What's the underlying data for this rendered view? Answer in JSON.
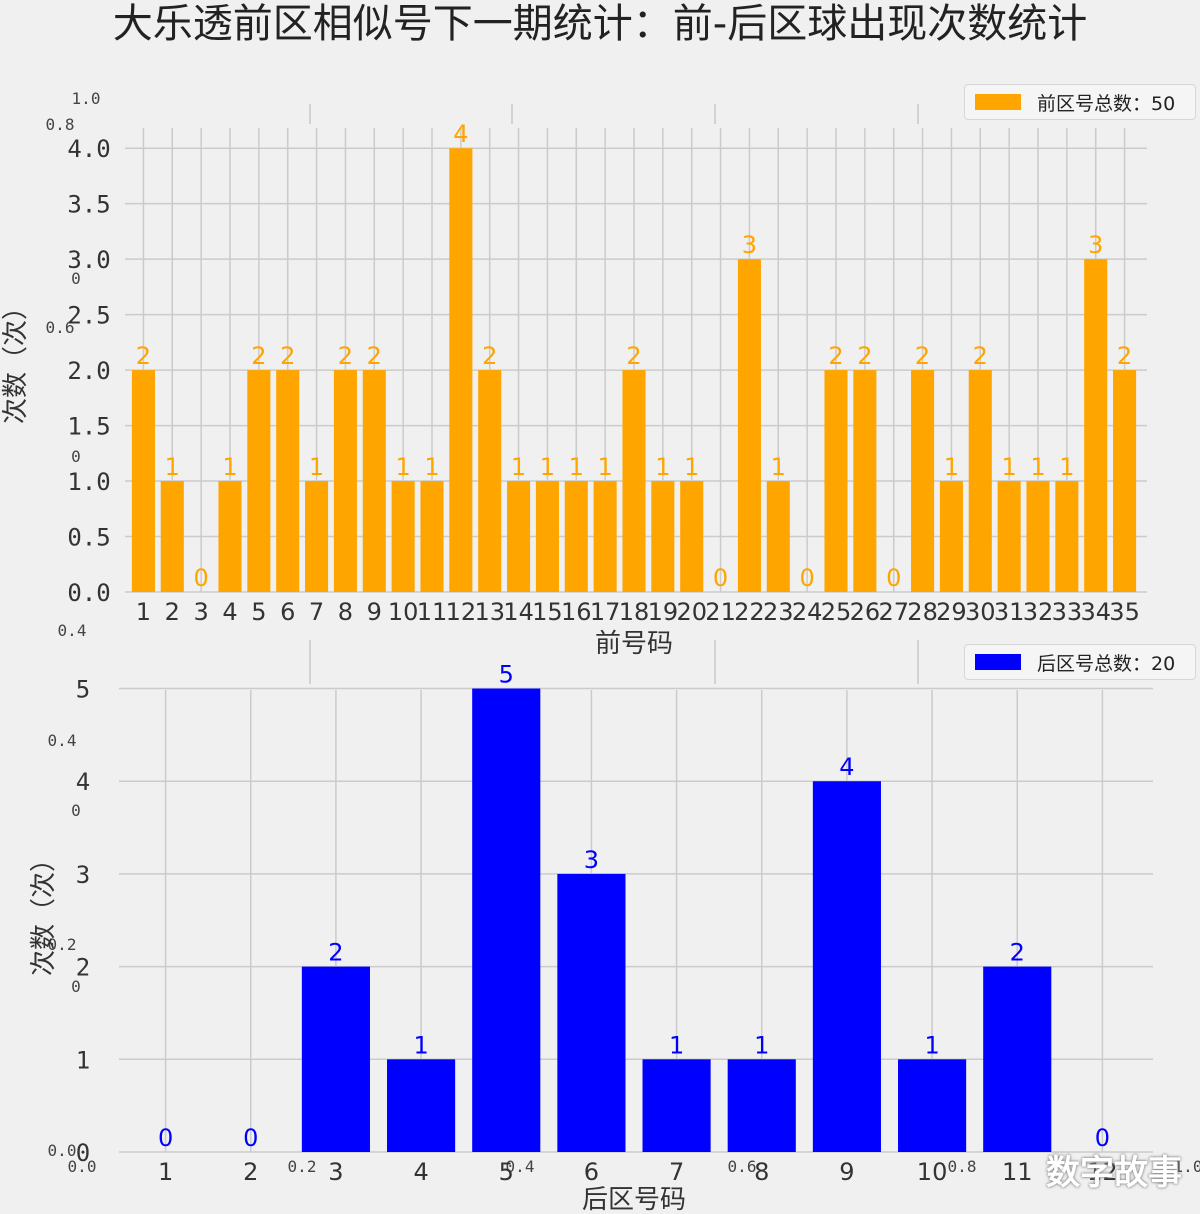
{
  "title": "大乐透前区相似号下一期统计：前-后区球出现次数统计",
  "watermark": "数字故事",
  "ghost_axis": {
    "x_ticks": [
      "0.0",
      "0.2",
      "0.4",
      "0.6",
      "0.8",
      "1.0"
    ],
    "y_ticks_top": [
      "1.0",
      "0.8",
      "0.6",
      "0.4"
    ],
    "y_ticks_bottom": [
      "0.4",
      "0.2",
      "0.0"
    ]
  },
  "chart_data": [
    {
      "type": "bar",
      "xlabel": "前号码",
      "ylabel": "次数（次）",
      "legend": "前区号总数：50",
      "legend_position": "top-right",
      "color": "#FFA500",
      "grid": true,
      "ylim": [
        0,
        4.2
      ],
      "yticks": [
        "0.0",
        "0.5",
        "1.0",
        "1.5",
        "2.0",
        "2.5",
        "3.0",
        "3.5",
        "4.0"
      ],
      "categories": [
        "1",
        "2",
        "3",
        "4",
        "5",
        "6",
        "7",
        "8",
        "9",
        "10",
        "11",
        "12",
        "13",
        "14",
        "15",
        "16",
        "17",
        "18",
        "19",
        "20",
        "21",
        "22",
        "23",
        "24",
        "25",
        "26",
        "27",
        "28",
        "29",
        "30",
        "31",
        "32",
        "33",
        "34",
        "35"
      ],
      "values": [
        2,
        1,
        0,
        1,
        2,
        2,
        1,
        2,
        2,
        1,
        1,
        4,
        2,
        1,
        1,
        1,
        1,
        2,
        1,
        1,
        0,
        3,
        1,
        0,
        2,
        2,
        0,
        2,
        1,
        2,
        1,
        1,
        1,
        3,
        2
      ]
    },
    {
      "type": "bar",
      "xlabel": "后区号码",
      "ylabel": "次数（次）",
      "legend": "后区号总数：20",
      "legend_position": "top-right",
      "color": "#0000FF",
      "grid": true,
      "ylim": [
        0,
        5.2
      ],
      "yticks": [
        "0",
        "1",
        "2",
        "3",
        "4",
        "5"
      ],
      "categories": [
        "1",
        "2",
        "3",
        "4",
        "5",
        "6",
        "7",
        "8",
        "9",
        "10",
        "11",
        "12"
      ],
      "values": [
        0,
        0,
        2,
        1,
        5,
        3,
        1,
        1,
        4,
        1,
        2,
        0
      ]
    }
  ]
}
